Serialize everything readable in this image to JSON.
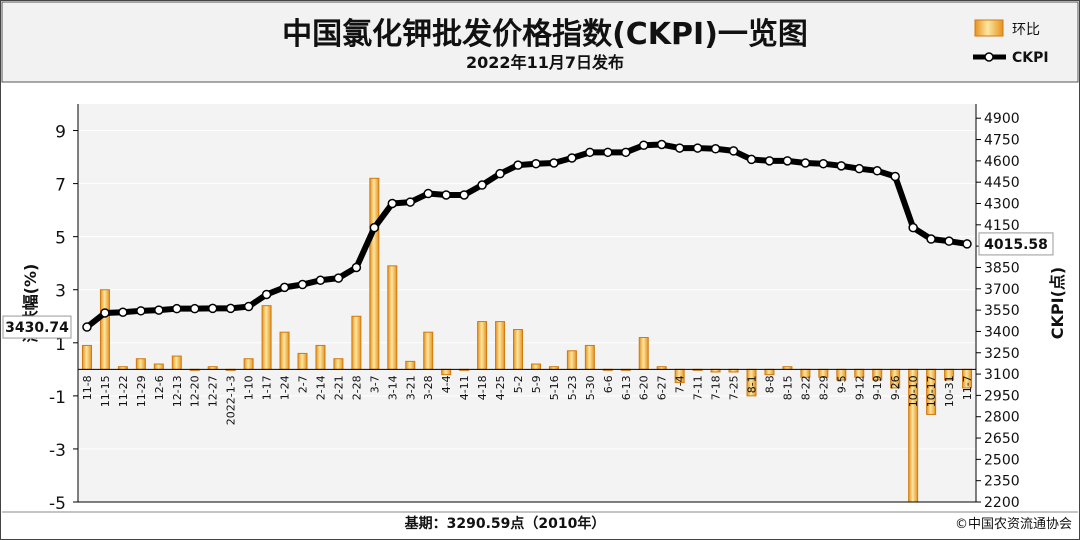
{
  "header": {
    "title": "中国氯化钾批发价格指数(CKPI)一览图",
    "subtitle": "2022年11月7日发布"
  },
  "footer": {
    "base_note": "基期：3290.59点（2010年）",
    "copyright": "©中国农资流通协会"
  },
  "chart_data": {
    "type": "bar+line",
    "legend": {
      "bar": "环比",
      "line": "CKPI",
      "placement": "top-right"
    },
    "left_axis": {
      "label": "涨跌幅(%)",
      "ylim": [
        -5,
        10
      ],
      "ticks": [
        -5,
        -3,
        -1,
        1,
        3,
        5,
        7,
        9
      ]
    },
    "right_axis": {
      "label": "CKPI(点)",
      "ylim": [
        2200,
        5000
      ],
      "ticks": [
        2200,
        2350,
        2500,
        2650,
        2800,
        2950,
        3100,
        3250,
        3400,
        3550,
        3700,
        3850,
        4000,
        4150,
        4300,
        4450,
        4600,
        4750,
        4900
      ]
    },
    "x_tick_labels": [
      "11-8",
      "11-15",
      "11-22",
      "11-29",
      "12-6",
      "12-13",
      "12-20",
      "12-27",
      "2022-1-3",
      "1-10",
      "1-17",
      "1-24",
      "2-7",
      "2-14",
      "2-21",
      "2-28",
      "3-7",
      "3-14",
      "3-21",
      "3-28",
      "4-4",
      "4-11",
      "4-18",
      "4-25",
      "5-2",
      "5-9",
      "5-16",
      "5-23",
      "5-30",
      "6-6",
      "6-13",
      "6-20",
      "6-27",
      "7-4",
      "7-11",
      "7-18",
      "7-25",
      "8-1",
      "8-8",
      "8-15",
      "8-22",
      "8-29",
      "9-5",
      "9-12",
      "9-19",
      "9-26",
      "10-10",
      "10-17",
      "10-31",
      "11-7"
    ],
    "bar_values": [
      0.9,
      3.0,
      0.1,
      0.4,
      0.2,
      0.5,
      0.0,
      0.1,
      0.0,
      0.4,
      2.4,
      1.4,
      0.6,
      0.9,
      0.4,
      2.0,
      7.2,
      3.9,
      0.3,
      1.4,
      -0.2,
      0.0,
      1.8,
      1.8,
      1.5,
      0.2,
      0.1,
      0.7,
      0.9,
      0.0,
      0.0,
      1.2,
      0.1,
      -0.5,
      0.0,
      -0.1,
      -0.1,
      -1.0,
      -0.2,
      0.1,
      -0.3,
      -0.3,
      -0.4,
      -0.3,
      -0.4,
      -0.7,
      -5.0,
      -1.7,
      -0.4,
      -0.7
    ],
    "line_values": [
      3430.74,
      3530,
      3535,
      3545,
      3550,
      3560,
      3560,
      3562,
      3562,
      3575,
      3660,
      3710,
      3730,
      3760,
      3775,
      3850,
      4130,
      4300,
      4310,
      4370,
      4360,
      4360,
      4430,
      4510,
      4570,
      4580,
      4585,
      4620,
      4660,
      4660,
      4660,
      4710,
      4715,
      4690,
      4690,
      4685,
      4670,
      4610,
      4600,
      4600,
      4585,
      4580,
      4565,
      4545,
      4530,
      4490,
      4130,
      4050,
      4035,
      4015.58
    ],
    "annotations": {
      "start_value": "3430.74",
      "end_value": "4015.58"
    }
  }
}
